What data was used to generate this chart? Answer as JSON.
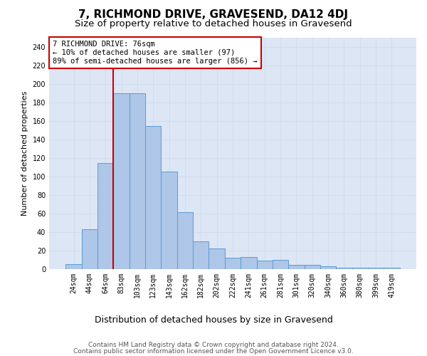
{
  "title": "7, RICHMOND DRIVE, GRAVESEND, DA12 4DJ",
  "subtitle": "Size of property relative to detached houses in Gravesend",
  "xlabel": "Distribution of detached houses by size in Gravesend",
  "ylabel": "Number of detached properties",
  "categories": [
    "24sqm",
    "44sqm",
    "64sqm",
    "83sqm",
    "103sqm",
    "123sqm",
    "143sqm",
    "162sqm",
    "182sqm",
    "202sqm",
    "222sqm",
    "241sqm",
    "261sqm",
    "281sqm",
    "301sqm",
    "320sqm",
    "340sqm",
    "360sqm",
    "380sqm",
    "399sqm",
    "419sqm"
  ],
  "values": [
    5,
    43,
    114,
    190,
    190,
    154,
    105,
    61,
    30,
    22,
    12,
    13,
    9,
    10,
    4,
    4,
    3,
    1,
    1,
    1,
    1
  ],
  "bar_color": "#aec6e8",
  "bar_edge_color": "#5b9bd5",
  "vline_color": "#cc0000",
  "annotation_line1": "7 RICHMOND DRIVE: 76sqm",
  "annotation_line2": "← 10% of detached houses are smaller (97)",
  "annotation_line3": "89% of semi-detached houses are larger (856) →",
  "annotation_box_color": "#ffffff",
  "annotation_box_edge_color": "#cc0000",
  "ylim": [
    0,
    250
  ],
  "yticks": [
    0,
    20,
    40,
    60,
    80,
    100,
    120,
    140,
    160,
    180,
    200,
    220,
    240
  ],
  "grid_color": "#d0d8e8",
  "background_color": "#dce6f5",
  "footer_line1": "Contains HM Land Registry data © Crown copyright and database right 2024.",
  "footer_line2": "Contains public sector information licensed under the Open Government Licence v3.0.",
  "title_fontsize": 11,
  "subtitle_fontsize": 9.5,
  "xlabel_fontsize": 9,
  "ylabel_fontsize": 8,
  "tick_fontsize": 7,
  "footer_fontsize": 6.5,
  "annotation_fontsize": 7.5
}
